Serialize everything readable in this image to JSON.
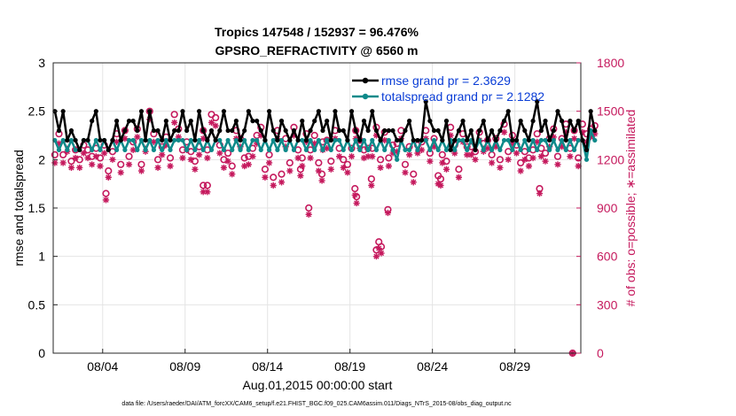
{
  "chart_data": {
    "type": "line",
    "title_line1": "Tropics 147548 / 152937 = 96.476%",
    "title_line2": "GPSRO_REFRACTIVITY @ 6560 m",
    "xlabel": "Aug.01,2015 00:00:00 start",
    "ylabel_left": "rmse and totalspread",
    "ylabel_right": "# of obs: o=possible; ∗=assimilated",
    "xlim": [
      0,
      32
    ],
    "ylim_left": [
      0,
      3
    ],
    "ylim_right": [
      0,
      1800
    ],
    "x_ticks": [
      {
        "value": 3,
        "label": "08/04"
      },
      {
        "value": 8,
        "label": "08/09"
      },
      {
        "value": 13,
        "label": "08/14"
      },
      {
        "value": 18,
        "label": "08/19"
      },
      {
        "value": 23,
        "label": "08/24"
      },
      {
        "value": 28,
        "label": "08/29"
      }
    ],
    "y_left_ticks": [
      "0",
      "0.5",
      "1",
      "1.5",
      "2",
      "2.5",
      "3"
    ],
    "y_left_tick_values": [
      0,
      0.5,
      1,
      1.5,
      2,
      2.5,
      3
    ],
    "y_right_ticks": [
      "0",
      "300",
      "600",
      "900",
      "1200",
      "1500",
      "1800"
    ],
    "y_right_tick_values": [
      0,
      300,
      600,
      900,
      1200,
      1500,
      1800
    ],
    "grid": true,
    "legend": [
      {
        "label": "rmse grand pr = 2.3629",
        "color": "#000000"
      },
      {
        "label": "totalspread grand pr = 2.1282",
        "color": "#0E8A8A"
      }
    ],
    "footnote": "data file: /Users/raeder/DAI/ATM_forcXX/CAM6_setup/f.e21.FHIST_BGC.f09_025.CAM6assim.011/Diags_NTrS_2015-08/obs_diag_output.nc",
    "x_step": 0.25,
    "rmse": [
      2.5,
      2.3,
      2.5,
      2.2,
      2.3,
      2.2,
      2.1,
      2.2,
      2.2,
      2.4,
      2.5,
      2.2,
      2.2,
      2.1,
      2.2,
      2.4,
      2.2,
      2.3,
      2.4,
      2.4,
      2.3,
      2.5,
      2.2,
      2.5,
      2.3,
      2.3,
      2.2,
      2.4,
      2.2,
      2.3,
      2.3,
      2.5,
      2.3,
      2.4,
      2.2,
      2.5,
      2.3,
      2.2,
      2.3,
      2.2,
      2.3,
      2.5,
      2.3,
      2.3,
      2.4,
      2.2,
      2.3,
      2.5,
      2.4,
      2.4,
      2.3,
      2.2,
      2.5,
      2.3,
      2.2,
      2.4,
      2.3,
      2.2,
      2.3,
      2.2,
      2.4,
      2.2,
      2.3,
      2.4,
      2.5,
      2.3,
      2.4,
      2.2,
      2.5,
      2.3,
      2.3,
      2.2,
      2.5,
      2.3,
      2.2,
      2.4,
      2.3,
      2.5,
      2.3,
      2.2,
      2.3,
      2.3,
      2.3,
      2.2,
      2.2,
      2.3,
      2.4,
      2.2,
      2.2,
      2.2,
      2.6,
      2.4,
      2.3,
      2.3,
      2.2,
      2.4,
      2.1,
      2.2,
      2.3,
      2.4,
      2.2,
      2.3,
      2.1,
      2.3,
      2.4,
      2.2,
      2.3,
      2.2,
      2.3,
      2.4,
      2.5,
      2.2,
      2.2,
      2.4,
      2.3,
      2.2,
      2.4,
      2.6,
      2.3,
      2.4,
      2.2,
      2.3,
      2.5,
      2.4,
      2.2,
      2.4,
      2.3,
      2.4,
      2.2,
      2.1,
      2.5,
      2.3
    ],
    "totalspread": [
      2.2,
      2.1,
      2.2,
      2.1,
      2.2,
      2.1,
      2.1,
      2.2,
      2.2,
      2.1,
      2.2,
      2.1,
      2.2,
      2.1,
      2.2,
      2.1,
      2.2,
      2.1,
      2.2,
      2.2,
      2.1,
      2.2,
      2.1,
      2.2,
      2.1,
      2.2,
      2.1,
      2.2,
      2.1,
      2.2,
      2.2,
      2.2,
      2.1,
      2.2,
      2.1,
      2.2,
      2.1,
      2.2,
      2.1,
      2.2,
      2.2,
      2.1,
      2.2,
      2.1,
      2.2,
      2.1,
      2.2,
      2.1,
      2.2,
      2.2,
      2.1,
      2.2,
      2.1,
      2.2,
      2.1,
      2.2,
      2.1,
      2.2,
      2.1,
      2.2,
      2.2,
      2.1,
      2.2,
      2.1,
      2.2,
      2.1,
      2.2,
      2.1,
      2.2,
      2.2,
      2.1,
      2.2,
      2.1,
      2.2,
      2.1,
      2.2,
      2.1,
      2.2,
      2.1,
      2.2,
      2.1,
      2.2,
      2.1,
      2.0,
      2.2,
      2.1,
      2.1,
      2.2,
      2.1,
      2.2,
      2.2,
      2.1,
      2.2,
      2.1,
      2.2,
      2.1,
      2.2,
      2.1,
      2.2,
      2.2,
      2.1,
      2.2,
      2.1,
      2.2,
      2.1,
      2.2,
      2.1,
      2.2,
      2.1,
      2.2,
      2.2,
      2.1,
      2.2,
      2.1,
      2.2,
      2.1,
      2.2,
      2.1,
      2.2,
      2.2,
      2.1,
      2.2,
      2.1,
      2.2,
      2.1,
      2.2,
      2.1,
      2.2,
      2.2,
      2.0,
      2.3,
      2.2
    ],
    "obs_possible": [
      1230,
      1360,
      1230,
      1300,
      1190,
      1260,
      1200,
      1290,
      1260,
      1220,
      1270,
      1210,
      1290,
      1130,
      1250,
      1360,
      1170,
      1380,
      1220,
      1310,
      1390,
      1170,
      1300,
      1500,
      1360,
      1200,
      1280,
      1340,
      1210,
      1480,
      1390,
      1260,
      1310,
      1250,
      1190,
      1280,
      1380,
      1260,
      1480,
      1460,
      1290,
      1200,
      1240,
      1160,
      1380,
      1330,
      1210,
      1220,
      1270,
      1350,
      1400,
      1140,
      1230,
      1090,
      1380,
      1110,
      1330,
      1180,
      1400,
      1260,
      1210,
      1360,
      1260,
      1350,
      1180,
      1310,
      1320,
      1190,
      1380,
      1270,
      1200,
      1170,
      1270,
      1380,
      1320,
      1260,
      1270,
      1270,
      1400,
      1200,
      1370,
      1210,
      1290,
      1300,
      1380,
      1170,
      1280,
      1110,
      1290,
      1310,
      1380,
      1240,
      1330,
      1100,
      1230,
      1190,
      1400,
      1290,
      1140,
      1360,
      1280,
      1280,
      1250,
      1370,
      1300,
      1320,
      1230,
      1330,
      1200,
      1420,
      1250,
      1350,
      1290,
      1180,
      1250,
      1210,
      1260,
      1360,
      1270,
      1240,
      1330,
      1390,
      1220,
      1330,
      1420,
      1270,
      1380,
      1210,
      1420,
      1360,
      1390,
      1410
    ],
    "obs_assimilated": [
      1180,
      1300,
      1180,
      1250,
      1150,
      1210,
      1150,
      1240,
      1210,
      1170,
      1220,
      1160,
      1240,
      1090,
      1200,
      1310,
      1120,
      1330,
      1170,
      1260,
      1340,
      1130,
      1250,
      1450,
      1310,
      1150,
      1230,
      1290,
      1160,
      1430,
      1340,
      1210,
      1260,
      1200,
      1140,
      1230,
      1330,
      1210,
      1430,
      1410,
      1240,
      1150,
      1190,
      1110,
      1330,
      1280,
      1160,
      1170,
      1220,
      1300,
      1350,
      1090,
      1180,
      1040,
      1330,
      1060,
      1280,
      1130,
      1350,
      1210,
      1160,
      1310,
      1210,
      1300,
      1130,
      1260,
      1270,
      1140,
      1330,
      1220,
      1150,
      1120,
      1220,
      1330,
      1270,
      1210,
      1220,
      1220,
      1350,
      1150,
      1320,
      1160,
      1240,
      1250,
      1330,
      1120,
      1230,
      1060,
      1240,
      1260,
      1330,
      1190,
      1280,
      1050,
      1180,
      1140,
      1350,
      1240,
      1090,
      1310,
      1230,
      1230,
      1200,
      1320,
      1250,
      1270,
      1180,
      1280,
      1150,
      1370,
      1200,
      1300,
      1240,
      1130,
      1200,
      1160,
      1210,
      1310,
      1220,
      1190,
      1280,
      1340,
      1170,
      1280,
      1370,
      1220,
      1330,
      1160,
      1370,
      1310,
      1340,
      1360
    ],
    "obs_low_outliers": [
      {
        "x": 3.2,
        "possible": 990,
        "assimilated": 950
      },
      {
        "x": 15.5,
        "possible": 900,
        "assimilated": 860
      },
      {
        "x": 18.3,
        "possible": 1020,
        "assimilated": 980
      },
      {
        "x": 18.4,
        "possible": 970,
        "assimilated": 930
      },
      {
        "x": 19.3,
        "possible": 1080,
        "assimilated": 1040
      },
      {
        "x": 19.6,
        "possible": 640,
        "assimilated": 600
      },
      {
        "x": 19.75,
        "possible": 690,
        "assimilated": 650
      },
      {
        "x": 19.9,
        "possible": 660,
        "assimilated": 620
      },
      {
        "x": 20.3,
        "possible": 890,
        "assimilated": 870
      },
      {
        "x": 9.1,
        "possible": 1040,
        "assimilated": 1000
      },
      {
        "x": 9.35,
        "possible": 1040,
        "assimilated": 1000
      },
      {
        "x": 15.0,
        "possible": 1140,
        "assimilated": 1100
      },
      {
        "x": 16.3,
        "possible": 1110,
        "assimilated": 1070
      },
      {
        "x": 23.5,
        "possible": 1080,
        "assimilated": 1040
      },
      {
        "x": 29.5,
        "possible": 1020,
        "assimilated": 990
      },
      {
        "x": 31.5,
        "possible": 0,
        "assimilated": 0
      }
    ]
  }
}
